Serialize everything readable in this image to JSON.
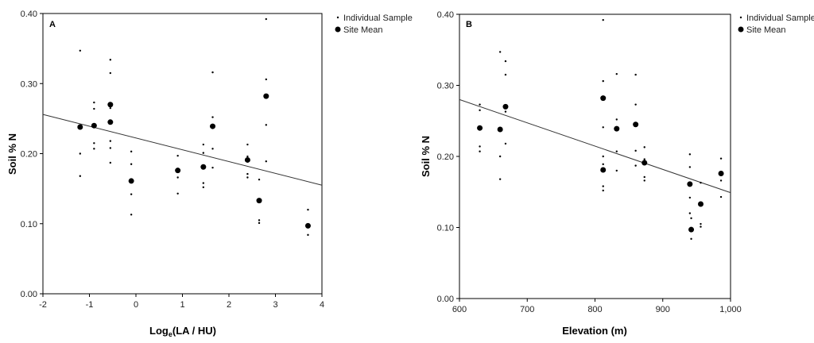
{
  "chart_data": [
    {
      "type": "scatter",
      "panel_label": "A",
      "xlabel_main": "Log",
      "xlabel_sub": "e",
      "xlabel_tail": "(LA / HU)",
      "ylabel": "Soil % N",
      "xlim": [
        -2,
        4
      ],
      "ylim": [
        0,
        0.4
      ],
      "x_ticks": [
        -2,
        -1,
        0,
        1,
        2,
        3,
        4
      ],
      "x_tick_labels": [
        "-2",
        "-1",
        "0",
        "1",
        "2",
        "3",
        "4"
      ],
      "y_ticks": [
        0,
        0.1,
        0.2,
        0.3,
        0.4
      ],
      "y_tick_labels": [
        "0.00",
        "0.10",
        "0.20",
        "0.30",
        "0.40"
      ],
      "legend_position": "top-right",
      "series": [
        {
          "name": "Individual Sample",
          "marker": "small-dot",
          "x": [
            -1.2,
            -1.2,
            -1.2,
            -0.9,
            -0.9,
            -0.9,
            -0.9,
            -0.55,
            -0.55,
            -0.55,
            -0.55,
            -0.55,
            -0.55,
            -0.1,
            -0.1,
            -0.1,
            -0.1,
            0.9,
            0.9,
            0.9,
            1.45,
            1.45,
            1.45,
            1.45,
            1.65,
            1.65,
            1.65,
            1.65,
            2.4,
            2.4,
            2.4,
            2.4,
            2.65,
            2.65,
            2.65,
            2.8,
            2.8,
            2.8,
            2.8,
            3.7,
            3.7,
            3.7
          ],
          "y": [
            0.347,
            0.2,
            0.168,
            0.273,
            0.264,
            0.215,
            0.207,
            0.334,
            0.315,
            0.265,
            0.218,
            0.208,
            0.187,
            0.203,
            0.185,
            0.142,
            0.113,
            0.197,
            0.166,
            0.143,
            0.213,
            0.201,
            0.158,
            0.152,
            0.316,
            0.252,
            0.207,
            0.18,
            0.213,
            0.196,
            0.171,
            0.166,
            0.163,
            0.105,
            0.101,
            0.392,
            0.306,
            0.241,
            0.189,
            0.12,
            0.098,
            0.084
          ]
        },
        {
          "name": "Site Mean",
          "marker": "large-dot",
          "x": [
            -1.2,
            -0.9,
            -0.55,
            -0.55,
            -0.1,
            0.9,
            1.45,
            1.65,
            2.4,
            2.65,
            2.8,
            3.7
          ],
          "y": [
            0.238,
            0.24,
            0.27,
            0.245,
            0.161,
            0.176,
            0.181,
            0.239,
            0.191,
            0.133,
            0.282,
            0.097
          ]
        }
      ],
      "fit_line": {
        "x": [
          -2,
          4
        ],
        "y": [
          0.256,
          0.155
        ]
      }
    },
    {
      "type": "scatter",
      "panel_label": "B",
      "xlabel": "Elevation (m)",
      "ylabel": "Soil % N",
      "xlim": [
        600,
        1000
      ],
      "ylim": [
        0,
        0.4
      ],
      "x_ticks": [
        600,
        700,
        800,
        900,
        1000
      ],
      "x_tick_labels": [
        "600",
        "700",
        "800",
        "900",
        "1,000"
      ],
      "y_ticks": [
        0,
        0.1,
        0.2,
        0.3,
        0.4
      ],
      "y_tick_labels": [
        "0.00",
        "0.10",
        "0.20",
        "0.30",
        "0.40"
      ],
      "legend_position": "top-right",
      "series": [
        {
          "name": "Individual Sample",
          "marker": "small-dot",
          "x": [
            630,
            630,
            630,
            630,
            660,
            660,
            660,
            668,
            668,
            668,
            668,
            812,
            812,
            812,
            812,
            812,
            812,
            812,
            832,
            832,
            832,
            832,
            860,
            860,
            860,
            860,
            873,
            873,
            873,
            873,
            940,
            940,
            940,
            940,
            942,
            942,
            956,
            956,
            956,
            986,
            986,
            986
          ],
          "y": [
            0.273,
            0.265,
            0.214,
            0.207,
            0.347,
            0.2,
            0.168,
            0.334,
            0.315,
            0.263,
            0.218,
            0.392,
            0.306,
            0.241,
            0.189,
            0.158,
            0.152,
            0.2,
            0.316,
            0.252,
            0.207,
            0.18,
            0.315,
            0.273,
            0.208,
            0.187,
            0.213,
            0.196,
            0.171,
            0.166,
            0.203,
            0.185,
            0.142,
            0.12,
            0.113,
            0.084,
            0.163,
            0.105,
            0.101,
            0.197,
            0.166,
            0.143
          ]
        },
        {
          "name": "Site Mean",
          "marker": "large-dot",
          "x": [
            630,
            660,
            668,
            812,
            812,
            832,
            860,
            873,
            940,
            942,
            956,
            986
          ],
          "y": [
            0.24,
            0.238,
            0.27,
            0.282,
            0.181,
            0.239,
            0.245,
            0.191,
            0.161,
            0.097,
            0.133,
            0.176
          ]
        }
      ],
      "fit_line": {
        "x": [
          600,
          1000
        ],
        "y": [
          0.28,
          0.149
        ]
      }
    }
  ]
}
